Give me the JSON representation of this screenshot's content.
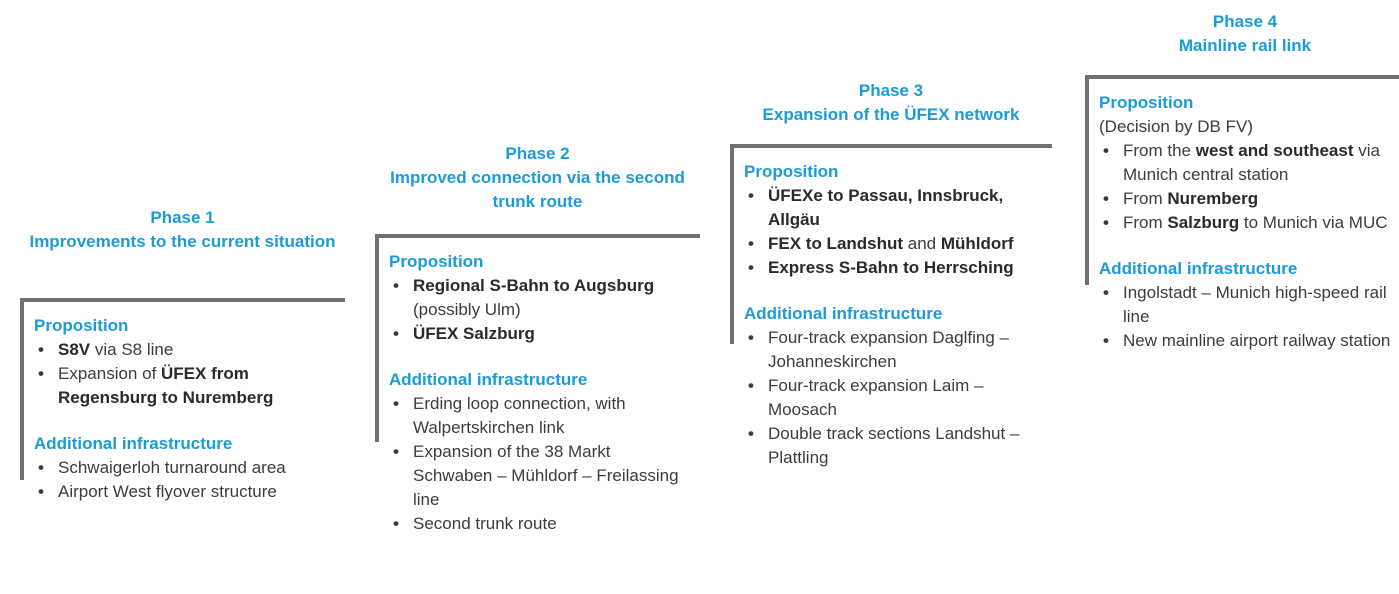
{
  "phases": [
    {
      "title": [
        "Phase 1",
        "Improvements to the current situation"
      ],
      "sections": [
        {
          "heading": "Proposition",
          "items": [
            [
              {
                "text": "S8V",
                "bold": true
              },
              {
                "text": " via S8 line",
                "bold": false
              }
            ],
            [
              {
                "text": "Expansion of ",
                "bold": false
              },
              {
                "text": "ÜFEX from Regensburg to Nuremberg",
                "bold": true
              }
            ]
          ]
        },
        {
          "heading": "Additional infrastructure",
          "items": [
            [
              {
                "text": "Schwaigerloh turnaround area",
                "bold": false
              }
            ],
            [
              {
                "text": "Airport West flyover structure",
                "bold": false
              }
            ]
          ]
        }
      ]
    },
    {
      "title": [
        "Phase 2",
        "Improved connection via the second trunk route"
      ],
      "sections": [
        {
          "heading": "Proposition",
          "items": [
            [
              {
                "text": "Regional S-Bahn to Augsburg",
                "bold": true
              },
              {
                "text": " (possibly Ulm)",
                "bold": false
              }
            ],
            [
              {
                "text": "ÜFEX Salzburg",
                "bold": true
              }
            ]
          ]
        },
        {
          "heading": "Additional infrastructure",
          "items": [
            [
              {
                "text": "Erding loop connection, with Walpertskirchen link",
                "bold": false
              }
            ],
            [
              {
                "text": "Expansion of the 38 Markt Schwaben – Mühldorf – Freilassing line",
                "bold": false
              }
            ],
            [
              {
                "text": "Second trunk route",
                "bold": false
              }
            ]
          ]
        }
      ]
    },
    {
      "title": [
        "Phase 3",
        "Expansion of the ÜFEX network"
      ],
      "sections": [
        {
          "heading": "Proposition",
          "items": [
            [
              {
                "text": "ÜFEXe to Passau, Innsbruck, Allgäu",
                "bold": true
              }
            ],
            [
              {
                "text": "FEX to Landshut",
                "bold": true
              },
              {
                "text": " and ",
                "bold": false
              },
              {
                "text": "Mühldorf",
                "bold": true
              }
            ],
            [
              {
                "text": "Express S-Bahn to Herrsching",
                "bold": true
              }
            ]
          ]
        },
        {
          "heading": "Additional infrastructure",
          "items": [
            [
              {
                "text": "Four-track expansion Daglfing – Johanneskirchen",
                "bold": false
              }
            ],
            [
              {
                "text": "Four-track expansion Laim – Moosach",
                "bold": false
              }
            ],
            [
              {
                "text": "Double track sections Landshut – Plattling",
                "bold": false
              }
            ]
          ]
        }
      ]
    },
    {
      "title": [
        "Phase 4",
        "Mainline rail link"
      ],
      "sections": [
        {
          "heading": "Proposition",
          "note": "(Decision by DB FV)",
          "items": [
            [
              {
                "text": "From the ",
                "bold": false
              },
              {
                "text": "west and southeast",
                "bold": true
              },
              {
                "text": " via Munich central station",
                "bold": false
              }
            ],
            [
              {
                "text": "From ",
                "bold": false
              },
              {
                "text": "Nuremberg",
                "bold": true
              }
            ],
            [
              {
                "text": "From  ",
                "bold": false
              },
              {
                "text": "Salzburg",
                "bold": true
              },
              {
                "text": " to Munich via MUC",
                "bold": false
              }
            ]
          ]
        },
        {
          "heading": "Additional infrastructure",
          "items": [
            [
              {
                "text": "Ingolstadt – Munich high-speed rail line",
                "bold": false
              }
            ],
            [
              {
                "text": "New mainline airport railway station",
                "bold": false
              }
            ]
          ]
        }
      ]
    }
  ]
}
